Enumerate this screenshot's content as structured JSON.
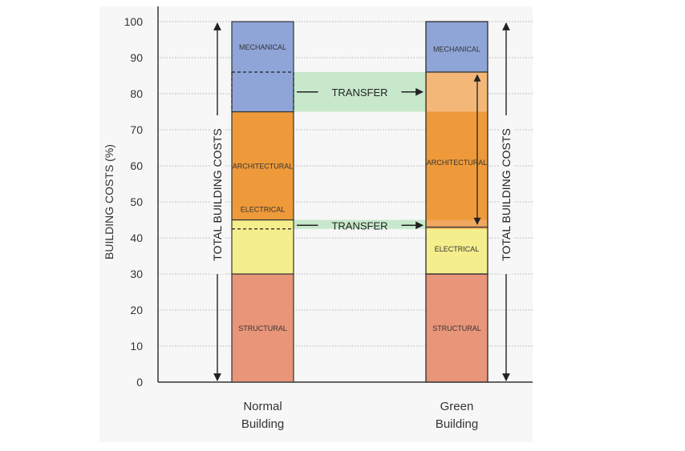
{
  "chart_data": {
    "type": "bar",
    "stacked": true,
    "ylabel": "BUILDING COSTS  (%)",
    "ylim": [
      0,
      100
    ],
    "yticks": [
      0,
      10,
      20,
      30,
      40,
      50,
      60,
      70,
      80,
      90,
      100
    ],
    "grid": "horizontal dotted",
    "categories": [
      "Normal Building",
      "Green Building"
    ],
    "category_label_lines": [
      [
        "Normal",
        "Building"
      ],
      [
        "Green",
        "Building"
      ]
    ],
    "series": [
      {
        "name": "STRUCTURAL",
        "values": [
          30,
          30
        ],
        "color": "#e8957a"
      },
      {
        "name": "ELECTRICAL",
        "values": [
          15,
          13
        ],
        "color": "#f5ee8c"
      },
      {
        "name": "ARCHITECTURAL",
        "values": [
          30,
          43
        ],
        "color": "#ee9a3a"
      },
      {
        "name": "MECHANICAL",
        "values": [
          25,
          14
        ],
        "color": "#8fa5d8"
      }
    ],
    "transfer_regions": [
      {
        "from": [
          75,
          86
        ],
        "color": "#f3b778"
      },
      {
        "from": [
          42.5,
          45
        ],
        "color": "#f0a860"
      }
    ],
    "total_label": "TOTAL BUILDING COSTS",
    "annotations": [
      {
        "text": "TRANSFER",
        "y": 80.5
      },
      {
        "text": "TRANSFER",
        "y": 43.5
      }
    ],
    "colors": {
      "axis": "#333333",
      "grid": "#9a9a9a",
      "transfer_band": "#c8e8cc",
      "panel": "#f7f7f7"
    }
  }
}
